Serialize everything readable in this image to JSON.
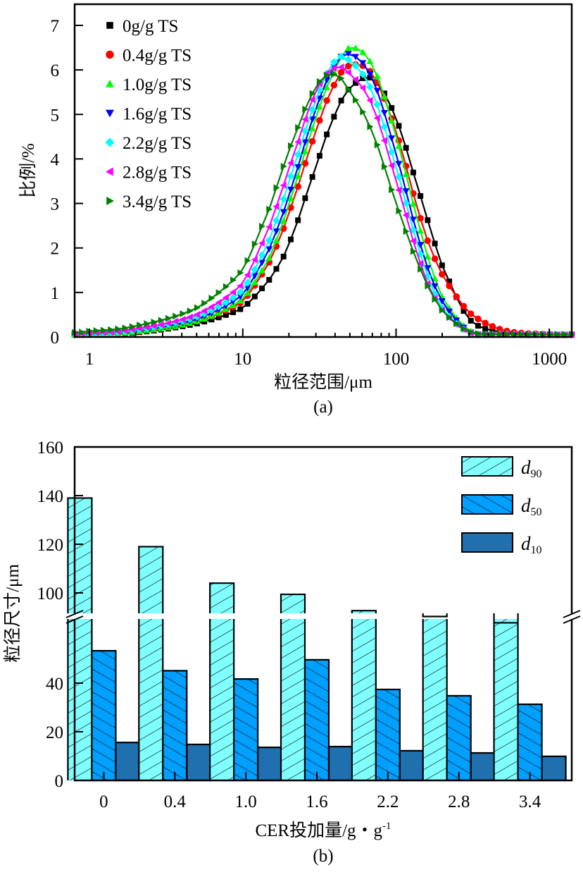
{
  "chart_data": [
    {
      "type": "line",
      "panel_label": "(a)",
      "title": "",
      "xlabel": "粒径范围/μm",
      "ylabel": "比例/%",
      "xscale": "log",
      "xlim": [
        0.8,
        1400
      ],
      "ylim": [
        0,
        7.5
      ],
      "xticks": [
        1,
        10,
        100,
        1000
      ],
      "xtick_labels": [
        "1",
        "10",
        "100",
        "1000"
      ],
      "yticks": [
        0,
        1,
        2,
        3,
        4,
        5,
        6,
        7
      ],
      "ytick_labels": [
        "0",
        "1",
        "2",
        "3",
        "4",
        "5",
        "6",
        "7"
      ],
      "grid": false,
      "legend_position": "top-left",
      "x": [
        0.8,
        1,
        2,
        5,
        10,
        15,
        20,
        30,
        40,
        50,
        70,
        100,
        150,
        200,
        300,
        500,
        1000,
        1400
      ],
      "series": [
        {
          "name": "0g/g TS",
          "color": "#000000",
          "marker": "square",
          "values": [
            0.05,
            0.06,
            0.1,
            0.3,
            0.65,
            1.3,
            2.1,
            3.8,
            5.0,
            5.6,
            5.8,
            4.9,
            3.0,
            1.6,
            0.4,
            0.1,
            0.05,
            0.05
          ]
        },
        {
          "name": "0.4g/g TS",
          "color": "#ff0000",
          "marker": "circle",
          "values": [
            0.05,
            0.06,
            0.12,
            0.35,
            0.8,
            1.7,
            2.8,
            4.6,
            5.7,
            6.1,
            5.9,
            4.6,
            2.5,
            1.4,
            0.55,
            0.15,
            0.06,
            0.05
          ]
        },
        {
          "name": "1.0g/g TS",
          "color": "#00ff00",
          "marker": "triangle-up",
          "values": [
            0.05,
            0.06,
            0.12,
            0.35,
            0.85,
            1.8,
            3.0,
            4.9,
            6.0,
            6.5,
            6.1,
            4.5,
            2.2,
            0.9,
            0.15,
            0.06,
            0.05,
            0.05
          ]
        },
        {
          "name": "1.6g/g TS",
          "color": "#0000ff",
          "marker": "triangle-down",
          "values": [
            0.05,
            0.07,
            0.14,
            0.4,
            0.95,
            2.0,
            3.2,
            5.1,
            6.1,
            6.35,
            5.8,
            4.1,
            1.9,
            0.8,
            0.12,
            0.06,
            0.05,
            0.05
          ]
        },
        {
          "name": "2.2g/g TS",
          "color": "#00ffff",
          "marker": "diamond",
          "values": [
            0.06,
            0.08,
            0.16,
            0.45,
            1.05,
            2.2,
            3.5,
            5.3,
            6.2,
            6.2,
            5.5,
            3.8,
            1.7,
            0.65,
            0.1,
            0.06,
            0.05,
            0.05
          ]
        },
        {
          "name": "2.8g/g TS",
          "color": "#ff00ff",
          "marker": "triangle-left",
          "values": [
            0.07,
            0.09,
            0.18,
            0.5,
            1.2,
            2.5,
            3.8,
            5.5,
            6.05,
            5.9,
            5.2,
            3.5,
            1.5,
            0.6,
            0.1,
            0.06,
            0.05,
            0.05
          ]
        },
        {
          "name": "3.4g/g TS",
          "color": "#008000",
          "marker": "triangle-right",
          "values": [
            0.1,
            0.13,
            0.25,
            0.65,
            1.5,
            2.9,
            4.2,
            5.6,
            5.9,
            5.5,
            4.6,
            3.0,
            1.4,
            0.6,
            0.12,
            0.07,
            0.06,
            0.06
          ]
        }
      ]
    },
    {
      "type": "bar",
      "panel_label": "(b)",
      "title": "",
      "xlabel": "CER投加量/g・g⁻¹",
      "xlabel_main": "CER投加量/g・g",
      "xlabel_sup": "-1",
      "ylabel": "粒径尺寸/μm",
      "categories": [
        "0",
        "0.4",
        "1.0",
        "1.6",
        "2.2",
        "2.8",
        "3.4"
      ],
      "y_axis_break": [
        58,
        85
      ],
      "ylim": [
        0,
        160
      ],
      "yticks": [
        0,
        20,
        40,
        100,
        120,
        140,
        160
      ],
      "ytick_labels": [
        "0",
        "20",
        "40",
        "100",
        "120",
        "140",
        "160"
      ],
      "grid": false,
      "legend_position": "top-right",
      "series": [
        {
          "name": "d90",
          "name_main": "d",
          "name_sub": "90",
          "color": "#80ffff",
          "hatch": "forward-diagonal",
          "values": [
            139,
            119,
            104,
            99.4,
            92.7,
            90.3,
            87.7
          ]
        },
        {
          "name": "d50",
          "name_main": "d",
          "name_sub": "50",
          "color": "#00a0ff",
          "hatch": "back-diagonal",
          "values": [
            53.3,
            45.1,
            41.7,
            49.6,
            37.4,
            34.8,
            31.3
          ]
        },
        {
          "name": "d10",
          "name_main": "d",
          "name_sub": "10",
          "color": "#2070b0",
          "hatch": "none",
          "values": [
            15.6,
            14.8,
            13.6,
            13.9,
            12.2,
            11.3,
            9.9
          ]
        }
      ]
    }
  ]
}
